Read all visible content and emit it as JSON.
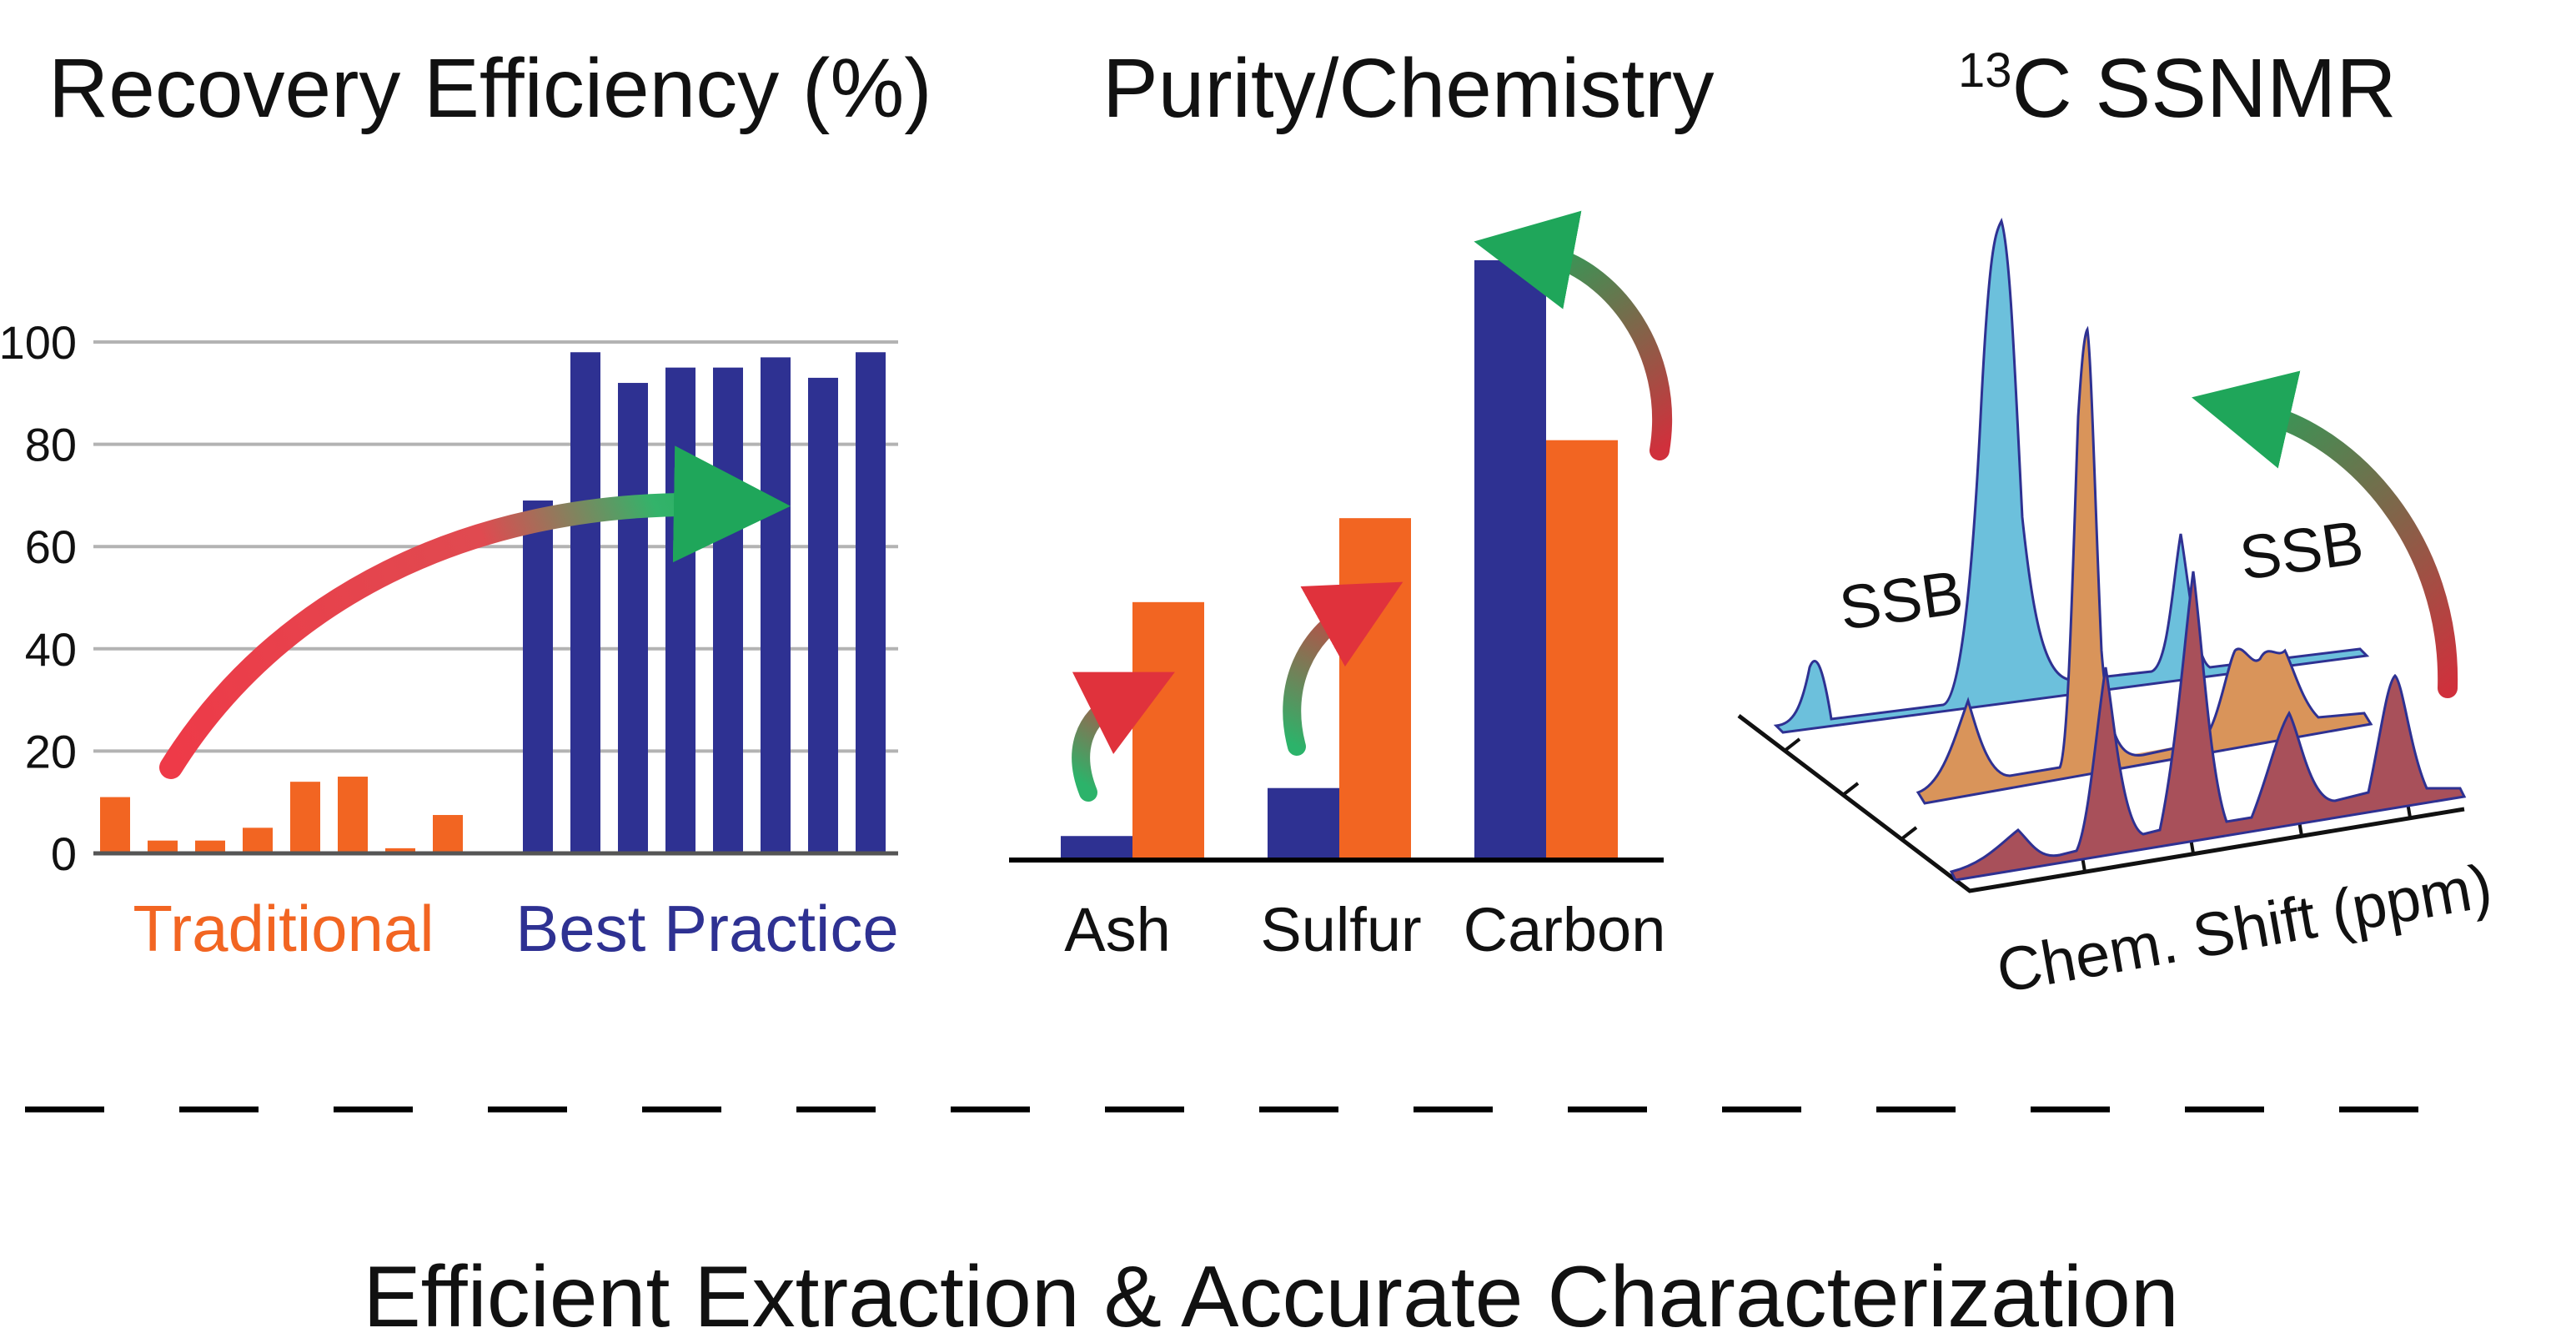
{
  "colors": {
    "navy": "#2e3192",
    "orange": "#f26522",
    "grid": "#b3b3b3",
    "blue_spec": "#6cc0dc",
    "orange_spec": "#d9945a",
    "maroon_spec": "#a8505a"
  },
  "panels": {
    "recovery": {
      "title": "Recovery Efficiency (%)"
    },
    "purity": {
      "title": "Purity/Chemistry"
    },
    "nmr": {
      "title_sup": "13",
      "title_main": "C SSNMR",
      "ssb_left": "SSB",
      "ssb_right": "SSB",
      "axis_label": "Chem. Shift (ppm)"
    }
  },
  "footer": {
    "caption": "Efficient Extraction & Accurate Characterization"
  },
  "chart_data": [
    {
      "type": "bar",
      "title": "Recovery Efficiency (%)",
      "ylim": [
        0,
        100
      ],
      "yticks": [
        "0",
        "20",
        "40",
        "60",
        "80",
        "100"
      ],
      "grid": true,
      "groups": [
        {
          "name": "Traditional",
          "color": "#f26522",
          "values": [
            11,
            2.5,
            2.5,
            5,
            14,
            15,
            1,
            7.5
          ]
        },
        {
          "name": "Best Practice",
          "color": "#2e3192",
          "values": [
            69,
            98,
            92,
            95,
            95,
            97,
            93,
            98
          ]
        }
      ]
    },
    {
      "type": "bar",
      "title": "Purity/Chemistry",
      "categories": [
        "Ash",
        "Sulfur",
        "Carbon"
      ],
      "series": [
        {
          "color": "#2e3192",
          "values": [
            4,
            12,
            100
          ]
        },
        {
          "color": "#f26522",
          "values": [
            43,
            57,
            70
          ]
        }
      ],
      "ylim": [
        0,
        100
      ]
    }
  ]
}
